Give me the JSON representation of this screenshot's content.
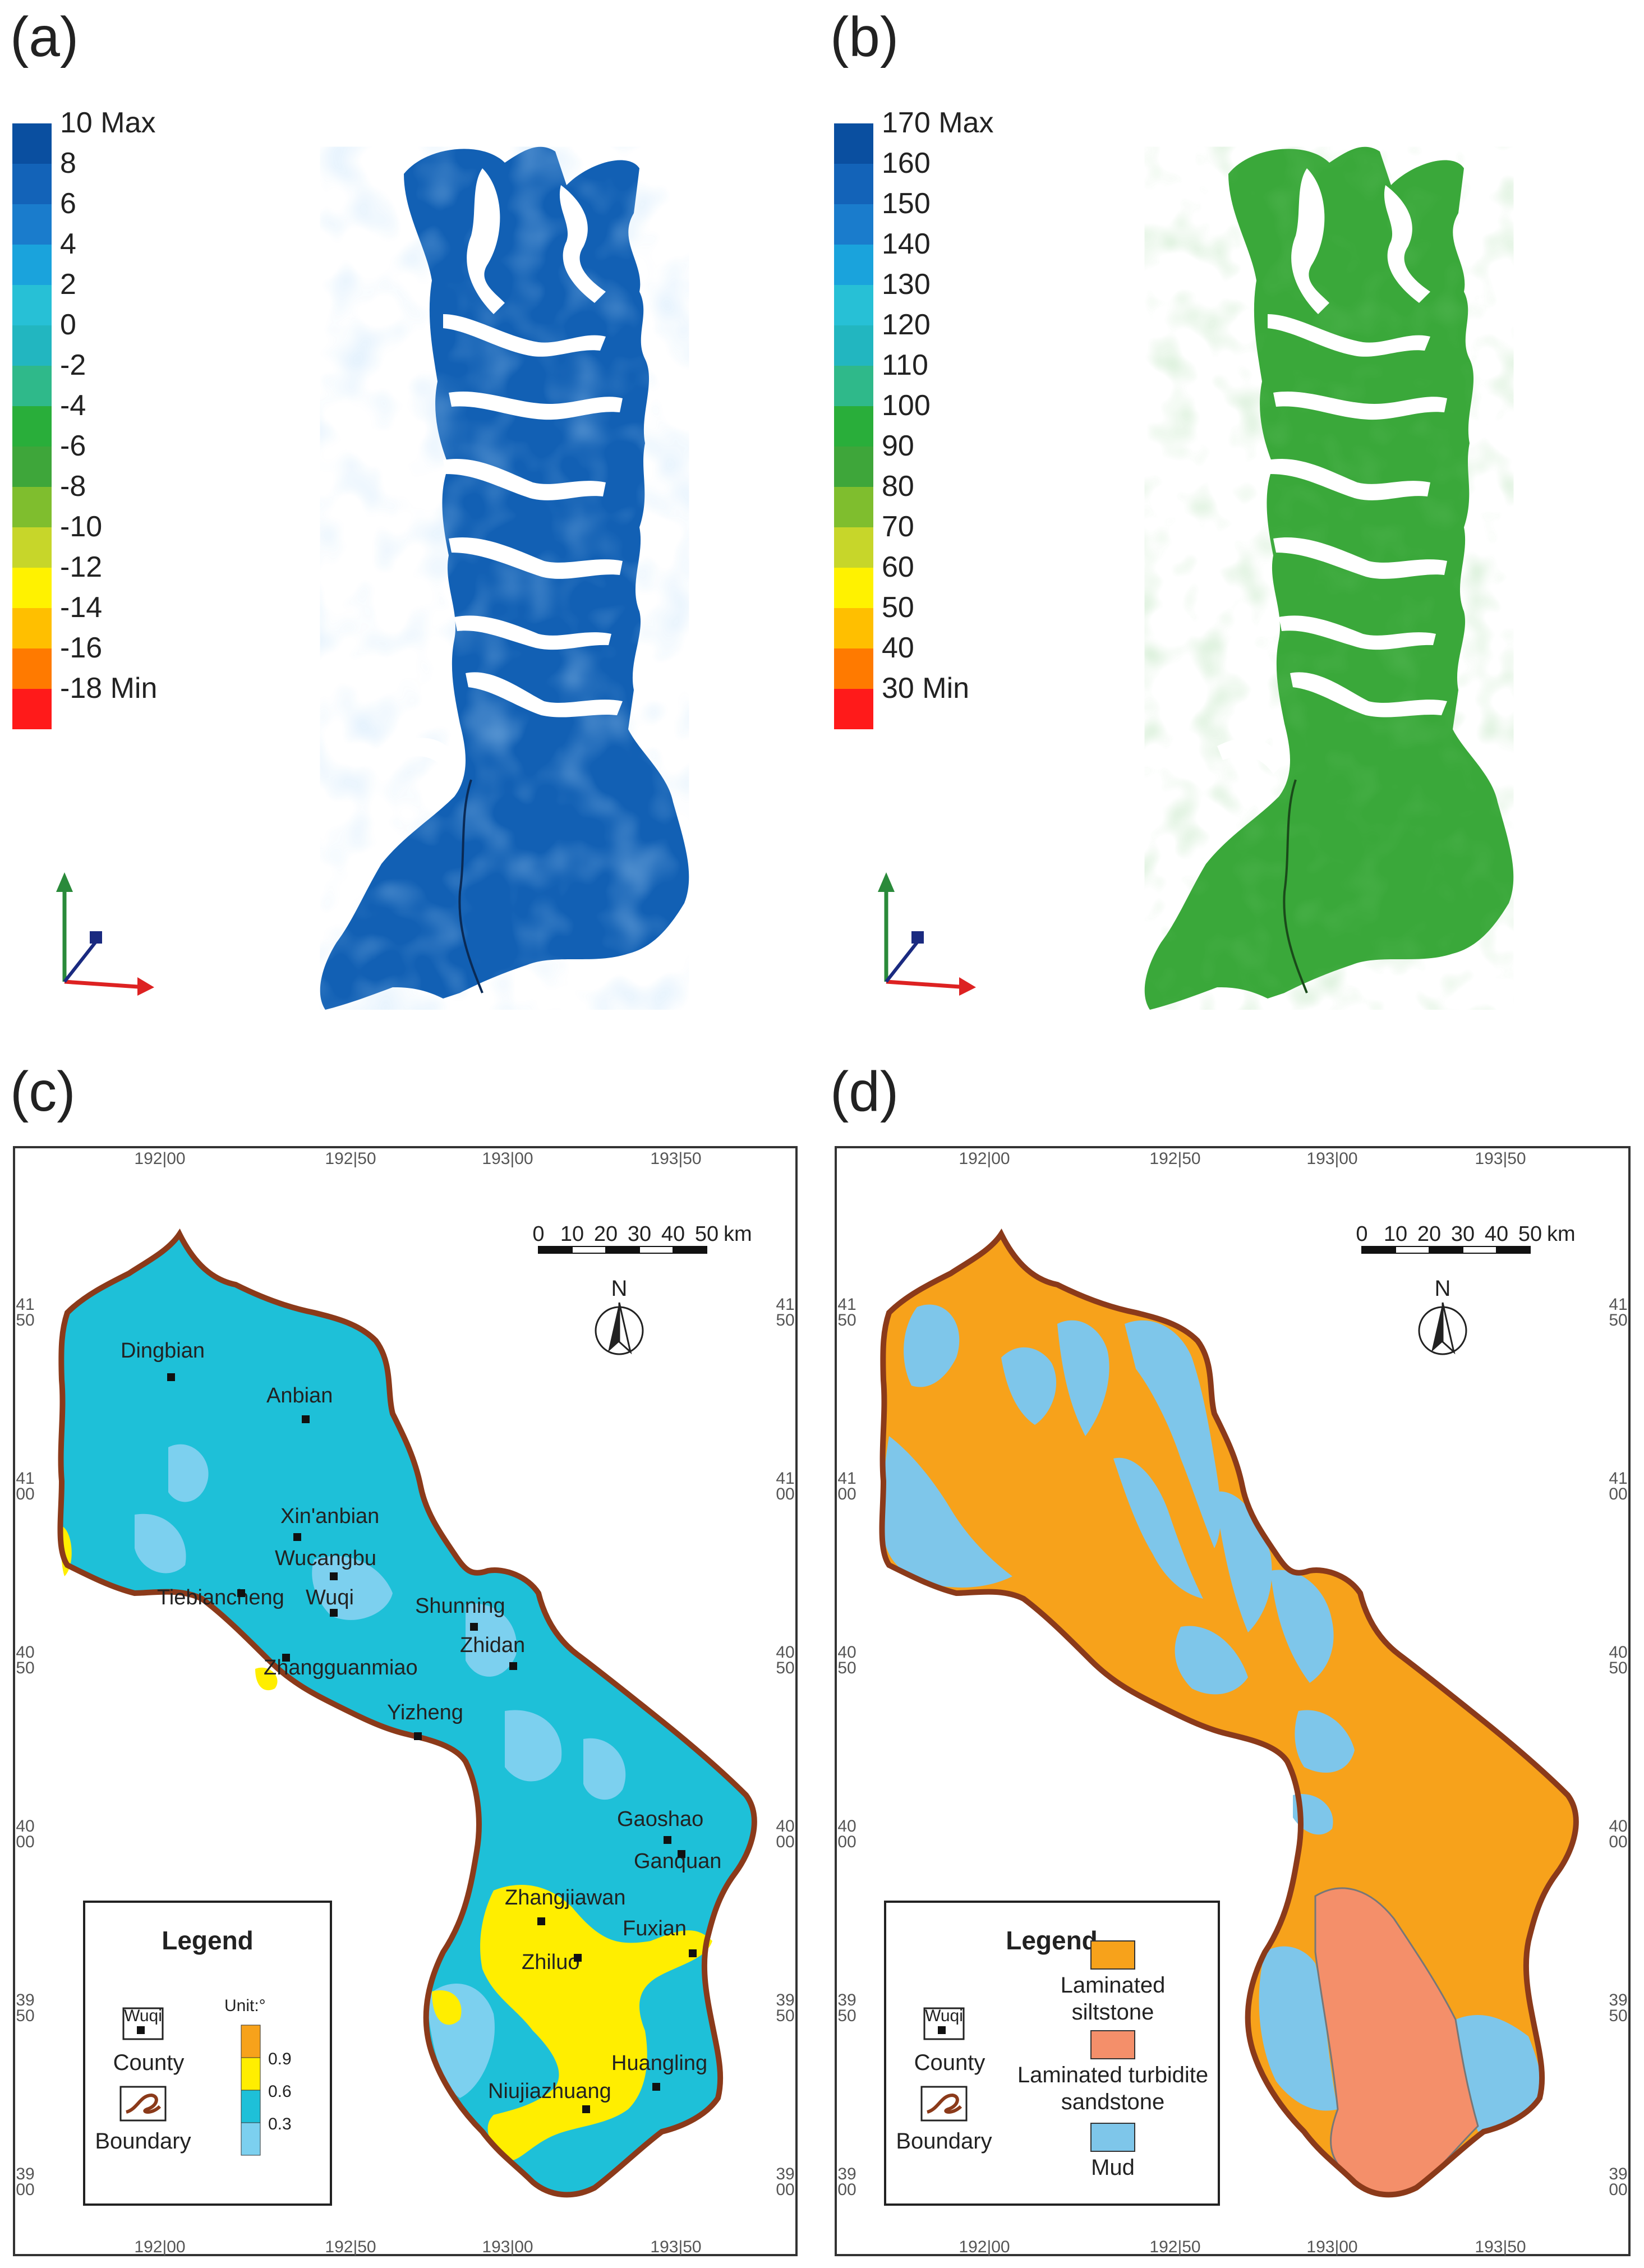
{
  "panels": {
    "a": {
      "label": "(a)",
      "colorbar": {
        "labels": [
          "10 Max",
          "8",
          "6",
          "4",
          "2",
          "0",
          "-2",
          "-4",
          "-6",
          "-8",
          "-10",
          "-12",
          "-14",
          "-16",
          "-18 Min"
        ],
        "colors": [
          "#0a4fa0",
          "#1363b8",
          "#1a7ccc",
          "#1aa3dc",
          "#27c0d6",
          "#22b6c0",
          "#2fb98a",
          "#29ae3a",
          "#3ea63a",
          "#7fbe2e",
          "#c7d62a",
          "#fff200",
          "#ffbf00",
          "#ff7a00",
          "#ff1a1a"
        ]
      },
      "map_fill": "#1260b4"
    },
    "b": {
      "label": "(b)",
      "colorbar": {
        "labels": [
          "170 Max",
          "160",
          "150",
          "140",
          "130",
          "120",
          "110",
          "100",
          "90",
          "80",
          "70",
          "60",
          "50",
          "40",
          "30 Min"
        ],
        "colors": [
          "#0a4fa0",
          "#1363b8",
          "#1a7ccc",
          "#1aa3dc",
          "#27c0d6",
          "#22b6c0",
          "#2fb98a",
          "#29ae3a",
          "#3ea63a",
          "#7fbe2e",
          "#c7d62a",
          "#fff200",
          "#ffbf00",
          "#ff7a00",
          "#ff1a1a"
        ]
      },
      "map_fill": "#3aa83a"
    },
    "c": {
      "label": "(c)",
      "grid_top": [
        "192|00",
        "192|50",
        "193|00",
        "193|50"
      ],
      "grid_bottom": [
        "192|00",
        "192|50",
        "193|00",
        "193|50"
      ],
      "grid_left": [
        "41 50",
        "41 00",
        "40 50",
        "40 00",
        "39 50",
        "39 00"
      ],
      "scale": {
        "ticks": [
          "0",
          "10",
          "20",
          "30",
          "40",
          "50"
        ],
        "unit": "km"
      },
      "north": "N",
      "cities": [
        "Dingbian",
        "Anbian",
        "Xin'anbian",
        "Wucangbu",
        "Tiebiancheng",
        "Wuqi",
        "Shunning",
        "Zhidan",
        "Zhangguanmiao",
        "Yizheng",
        "Gaoshao",
        "Ganquan",
        "Zhangjiawan",
        "Fuxian",
        "Zhiluo",
        "Huangling",
        "Niujiazhuang"
      ],
      "legend": {
        "title": "Legend",
        "county_sample": "Wuqi",
        "county_label": "County",
        "boundary_label": "Boundary",
        "unit_label": "Unit:°",
        "scale_values": [
          "0.9",
          "0.6",
          "0.3"
        ],
        "scale_colors": [
          "#f7a21b",
          "#ffee00",
          "#1ec0d8",
          "#7cd0ef"
        ]
      },
      "colors": {
        "base": "#1ec0d8",
        "light": "#7cd0ef",
        "high": "#ffee00",
        "boundary": "#8b3a1a"
      }
    },
    "d": {
      "label": "(d)",
      "grid_top": [
        "192|00",
        "192|50",
        "193|00",
        "193|50"
      ],
      "grid_bottom": [
        "192|00",
        "192|50",
        "193|00",
        "193|50"
      ],
      "grid_right": [
        "41 50",
        "41 00",
        "40 50",
        "40 00",
        "39 50",
        "39 00"
      ],
      "scale": {
        "ticks": [
          "0",
          "10",
          "20",
          "30",
          "40",
          "50"
        ],
        "unit": "km"
      },
      "north": "N",
      "legend": {
        "title": "Legend",
        "county_sample": "Wuqi",
        "county_label": "County",
        "boundary_label": "Boundary",
        "items": [
          {
            "label_lines": [
              "Laminated",
              "siltstone"
            ],
            "color": "#f7a21b"
          },
          {
            "label_lines": [
              "Laminated turbidite",
              "sandstone"
            ],
            "color": "#f48f6a"
          },
          {
            "label_lines": [
              "Mud"
            ],
            "color": "#7ec6ea"
          }
        ]
      },
      "colors": {
        "silt": "#f7a21b",
        "turbidite": "#f48f6a",
        "mud": "#7ec6ea",
        "boundary": "#8b3a1a"
      }
    }
  }
}
